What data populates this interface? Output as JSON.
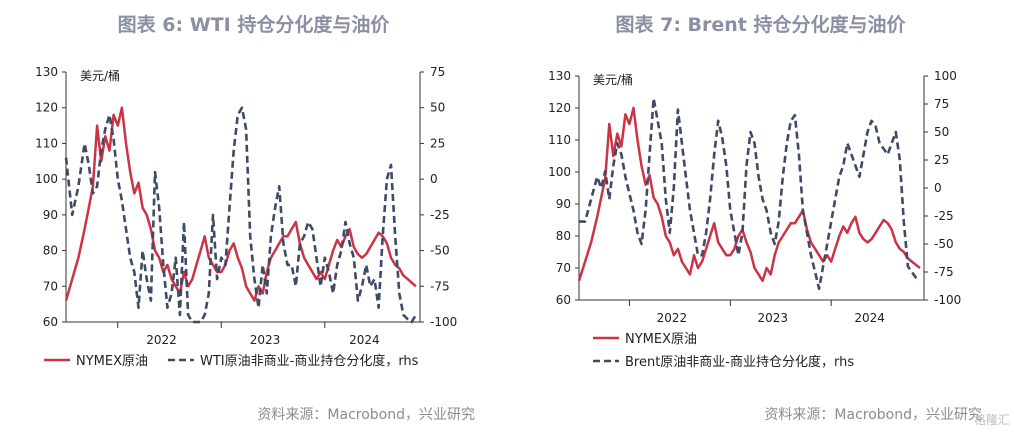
{
  "chart_data": [
    {
      "type": "line",
      "title": "图表 6:  WTI 持仓分化度与油价",
      "ylabel_left": "美元/桶",
      "ylim_left": [
        60,
        130
      ],
      "yticks_left": [
        "130",
        "120",
        "110",
        "100",
        "90",
        "80",
        "70",
        "60"
      ],
      "ylim_right": [
        -100,
        75
      ],
      "yticks_right": [
        "75",
        "50",
        "25",
        "0",
        "-25",
        "-50",
        "-75",
        "-100"
      ],
      "x_range": [
        2021.5,
        2024.92
      ],
      "xticks": [
        {
          "label": "2022",
          "value": 2022.0
        },
        {
          "label": "2023",
          "value": 2023.0
        },
        {
          "label": "2024",
          "value": 2024.0
        }
      ],
      "source": "资料来源：Macrobond，兴业研究",
      "series": [
        {
          "name": "NYMEX原油",
          "axis": "left",
          "style": "solid",
          "color": "#cc3344",
          "x": [
            2021.5,
            2021.56,
            2021.62,
            2021.68,
            2021.72,
            2021.76,
            2021.8,
            2021.84,
            2021.88,
            2021.92,
            2021.96,
            2022.0,
            2022.04,
            2022.08,
            2022.12,
            2022.16,
            2022.2,
            2022.24,
            2022.28,
            2022.32,
            2022.36,
            2022.4,
            2022.44,
            2022.48,
            2022.52,
            2022.56,
            2022.6,
            2022.64,
            2022.68,
            2022.72,
            2022.76,
            2022.8,
            2022.84,
            2022.88,
            2022.92,
            2022.96,
            2023.0,
            2023.04,
            2023.08,
            2023.12,
            2023.16,
            2023.2,
            2023.24,
            2023.28,
            2023.32,
            2023.36,
            2023.4,
            2023.44,
            2023.48,
            2023.52,
            2023.56,
            2023.6,
            2023.64,
            2023.68,
            2023.72,
            2023.76,
            2023.8,
            2023.84,
            2023.88,
            2023.92,
            2023.96,
            2024.0,
            2024.04,
            2024.08,
            2024.12,
            2024.16,
            2024.2,
            2024.24,
            2024.28,
            2024.32,
            2024.36,
            2024.4,
            2024.44,
            2024.48,
            2024.52,
            2024.56,
            2024.6,
            2024.64,
            2024.68,
            2024.72,
            2024.76,
            2024.8,
            2024.84,
            2024.88
          ],
          "y": [
            66,
            72,
            78,
            86,
            92,
            98,
            115,
            105,
            112,
            108,
            118,
            115,
            120,
            110,
            102,
            96,
            99,
            92,
            90,
            86,
            80,
            78,
            74,
            76,
            72,
            70,
            68,
            74,
            70,
            72,
            76,
            80,
            84,
            78,
            76,
            74,
            74,
            76,
            80,
            82,
            78,
            75,
            70,
            68,
            66,
            70,
            68,
            74,
            78,
            80,
            82,
            84,
            84,
            86,
            88,
            82,
            78,
            76,
            74,
            72,
            74,
            72,
            76,
            80,
            83,
            81,
            84,
            86,
            81,
            79,
            78,
            79,
            81,
            83,
            85,
            84,
            82,
            78,
            76,
            75,
            73,
            72,
            71,
            70
          ]
        },
        {
          "name": "WTI原油非商业-商业持仓分化度，rhs",
          "axis": "right",
          "style": "dashed",
          "color": "#3e4a66",
          "x": [
            2021.5,
            2021.56,
            2021.62,
            2021.68,
            2021.72,
            2021.76,
            2021.8,
            2021.84,
            2021.88,
            2021.92,
            2021.96,
            2022.0,
            2022.04,
            2022.08,
            2022.12,
            2022.16,
            2022.2,
            2022.24,
            2022.28,
            2022.32,
            2022.36,
            2022.4,
            2022.44,
            2022.48,
            2022.52,
            2022.56,
            2022.6,
            2022.64,
            2022.68,
            2022.72,
            2022.76,
            2022.8,
            2022.84,
            2022.88,
            2022.92,
            2022.96,
            2023.0,
            2023.04,
            2023.08,
            2023.12,
            2023.16,
            2023.2,
            2023.24,
            2023.28,
            2023.32,
            2023.36,
            2023.4,
            2023.44,
            2023.48,
            2023.52,
            2023.56,
            2023.6,
            2023.64,
            2023.68,
            2023.72,
            2023.76,
            2023.8,
            2023.84,
            2023.88,
            2023.92,
            2023.96,
            2024.0,
            2024.04,
            2024.08,
            2024.12,
            2024.16,
            2024.2,
            2024.24,
            2024.28,
            2024.32,
            2024.36,
            2024.4,
            2024.44,
            2024.48,
            2024.52,
            2024.56,
            2024.6,
            2024.64,
            2024.68,
            2024.72,
            2024.76,
            2024.8,
            2024.84,
            2024.88
          ],
          "y": [
            15,
            -25,
            -5,
            25,
            10,
            -10,
            -5,
            20,
            35,
            45,
            28,
            0,
            -15,
            -35,
            -55,
            -65,
            -90,
            -50,
            -70,
            -85,
            5,
            -20,
            -60,
            -90,
            -80,
            -55,
            -95,
            -30,
            -95,
            -100,
            -100,
            -100,
            -95,
            -80,
            -25,
            -70,
            -55,
            -60,
            -20,
            20,
            45,
            50,
            35,
            -40,
            -70,
            -90,
            -60,
            -80,
            -40,
            -20,
            -5,
            -45,
            -60,
            -60,
            -75,
            -45,
            -40,
            -30,
            -35,
            -55,
            -75,
            -55,
            -65,
            -80,
            -60,
            -50,
            -30,
            -45,
            -55,
            -85,
            -75,
            -60,
            -75,
            -70,
            -90,
            -40,
            0,
            10,
            -40,
            -80,
            -95,
            -98,
            -100,
            -95
          ]
        }
      ]
    },
    {
      "type": "line",
      "title": "图表 7:  Brent 持仓分化度与油价",
      "ylabel_left": "美元/桶",
      "ylim_left": [
        60,
        130
      ],
      "yticks_left": [
        "130",
        "120",
        "110",
        "100",
        "90",
        "80",
        "70",
        "60"
      ],
      "ylim_right": [
        -100,
        100
      ],
      "yticks_right": [
        "100",
        "75",
        "50",
        "25",
        "0",
        "-25",
        "-50",
        "-75",
        "-100"
      ],
      "x_range": [
        2021.5,
        2024.92
      ],
      "xticks": [
        {
          "label": "2022",
          "value": 2022.0
        },
        {
          "label": "2023",
          "value": 2023.0
        },
        {
          "label": "2024",
          "value": 2024.0
        }
      ],
      "source": "资料来源：Macrobond，兴业研究",
      "series": [
        {
          "name": "NYMEX原油",
          "axis": "left",
          "style": "solid",
          "color": "#cc3344",
          "x": [
            2021.5,
            2021.56,
            2021.62,
            2021.68,
            2021.72,
            2021.76,
            2021.8,
            2021.84,
            2021.88,
            2021.92,
            2021.96,
            2022.0,
            2022.04,
            2022.08,
            2022.12,
            2022.16,
            2022.2,
            2022.24,
            2022.28,
            2022.32,
            2022.36,
            2022.4,
            2022.44,
            2022.48,
            2022.52,
            2022.56,
            2022.6,
            2022.64,
            2022.68,
            2022.72,
            2022.76,
            2022.8,
            2022.84,
            2022.88,
            2022.92,
            2022.96,
            2023.0,
            2023.04,
            2023.08,
            2023.12,
            2023.16,
            2023.2,
            2023.24,
            2023.28,
            2023.32,
            2023.36,
            2023.4,
            2023.44,
            2023.48,
            2023.52,
            2023.56,
            2023.6,
            2023.64,
            2023.68,
            2023.72,
            2023.76,
            2023.8,
            2023.84,
            2023.88,
            2023.92,
            2023.96,
            2024.0,
            2024.04,
            2024.08,
            2024.12,
            2024.16,
            2024.2,
            2024.24,
            2024.28,
            2024.32,
            2024.36,
            2024.4,
            2024.44,
            2024.48,
            2024.52,
            2024.56,
            2024.6,
            2024.64,
            2024.68,
            2024.72,
            2024.76,
            2024.8,
            2024.84,
            2024.88
          ],
          "y": [
            66,
            72,
            78,
            86,
            92,
            98,
            115,
            105,
            112,
            108,
            118,
            115,
            120,
            110,
            102,
            96,
            99,
            92,
            90,
            86,
            80,
            78,
            74,
            76,
            72,
            70,
            68,
            74,
            70,
            72,
            76,
            80,
            84,
            78,
            76,
            74,
            74,
            76,
            80,
            82,
            78,
            75,
            70,
            68,
            66,
            70,
            68,
            74,
            78,
            80,
            82,
            84,
            84,
            86,
            88,
            82,
            78,
            76,
            74,
            72,
            74,
            72,
            76,
            80,
            83,
            81,
            84,
            86,
            81,
            79,
            78,
            79,
            81,
            83,
            85,
            84,
            82,
            78,
            76,
            75,
            73,
            72,
            71,
            70
          ]
        },
        {
          "name": "Brent原油非商业-商业持仓分化度，rhs",
          "axis": "right",
          "style": "dashed",
          "color": "#3e4a66",
          "x": [
            2021.5,
            2021.56,
            2021.62,
            2021.68,
            2021.72,
            2021.76,
            2021.8,
            2021.84,
            2021.88,
            2021.92,
            2021.96,
            2022.0,
            2022.04,
            2022.08,
            2022.12,
            2022.16,
            2022.2,
            2022.24,
            2022.28,
            2022.32,
            2022.36,
            2022.4,
            2022.44,
            2022.48,
            2022.52,
            2022.56,
            2022.6,
            2022.64,
            2022.68,
            2022.72,
            2022.76,
            2022.8,
            2022.84,
            2022.88,
            2022.92,
            2022.96,
            2023.0,
            2023.04,
            2023.08,
            2023.12,
            2023.16,
            2023.2,
            2023.24,
            2023.28,
            2023.32,
            2023.36,
            2023.4,
            2023.44,
            2023.48,
            2023.52,
            2023.56,
            2023.6,
            2023.64,
            2023.68,
            2023.72,
            2023.76,
            2023.8,
            2023.84,
            2023.88,
            2023.92,
            2023.96,
            2024.0,
            2024.04,
            2024.08,
            2024.12,
            2024.16,
            2024.2,
            2024.24,
            2024.28,
            2024.32,
            2024.36,
            2024.4,
            2024.44,
            2024.48,
            2024.52,
            2024.56,
            2024.6,
            2024.64,
            2024.68,
            2024.72,
            2024.76,
            2024.8,
            2024.84,
            2024.88
          ],
          "y": [
            -30,
            -30,
            -10,
            10,
            0,
            15,
            -10,
            20,
            40,
            30,
            10,
            -5,
            -20,
            -40,
            -50,
            -20,
            30,
            80,
            60,
            40,
            -10,
            -40,
            0,
            70,
            40,
            10,
            -20,
            -40,
            -60,
            -60,
            -40,
            -10,
            30,
            60,
            45,
            20,
            -20,
            -40,
            -60,
            -40,
            20,
            50,
            40,
            10,
            -10,
            -20,
            -40,
            -50,
            -30,
            10,
            40,
            60,
            65,
            30,
            -20,
            -40,
            -60,
            -75,
            -90,
            -70,
            -50,
            -30,
            -10,
            10,
            20,
            40,
            30,
            20,
            10,
            30,
            50,
            60,
            55,
            40,
            35,
            30,
            40,
            50,
            25,
            -30,
            -70,
            -75,
            -80,
            -82
          ]
        }
      ]
    }
  ],
  "watermark": "格隆汇"
}
